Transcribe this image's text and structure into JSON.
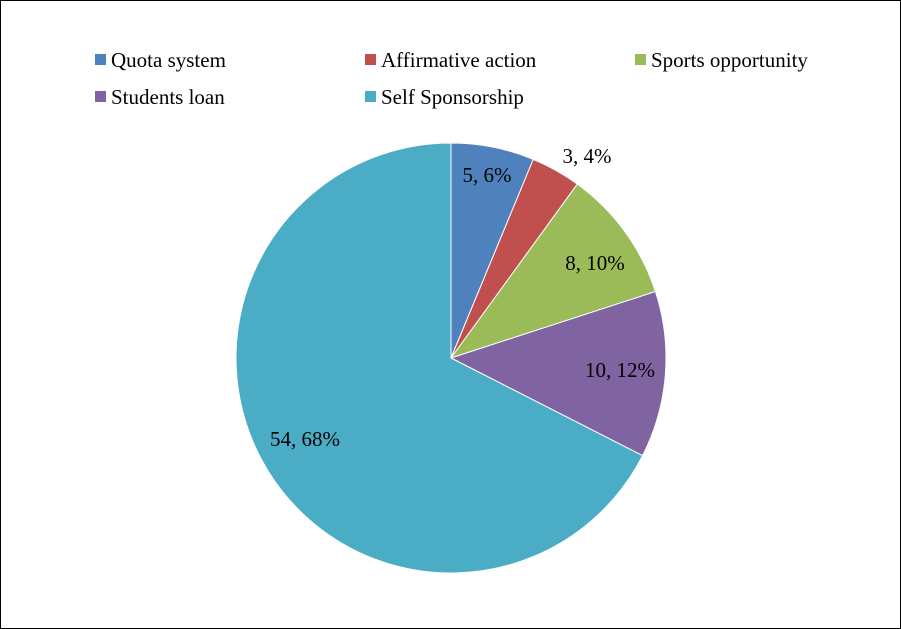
{
  "chart_data": {
    "type": "pie",
    "title": "",
    "categories": [
      "Quota system",
      "Affirmative action",
      "Sports opportunity",
      "Students loan",
      "Self Sponsorship"
    ],
    "values": [
      5,
      3,
      8,
      10,
      54
    ],
    "percentages": [
      6,
      4,
      10,
      12,
      68
    ],
    "data_labels": [
      "5, 6%",
      "3, 4%",
      "8, 10%",
      "10, 12%",
      "54, 68%"
    ],
    "colors": [
      "#4f81bd",
      "#c0504d",
      "#9bbb59",
      "#8064a2",
      "#4bacc6"
    ],
    "legend": {
      "placement": "top",
      "entries": [
        "Quota system",
        "Affirmative action",
        "Sports opportunity",
        "Students loan",
        "Self Sponsorship"
      ]
    },
    "start_angle": "12 o'clock",
    "direction": "clockwise"
  }
}
